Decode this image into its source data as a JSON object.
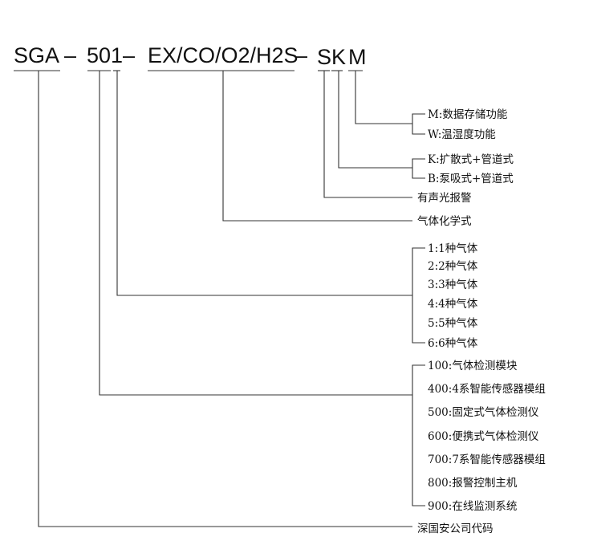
{
  "code": {
    "segments": [
      "SGA",
      "501",
      "EX/CO/O2/H2S",
      "SK",
      "M"
    ],
    "separator": "–"
  },
  "labels": {
    "function": [
      "M:数据存储功能",
      "W:温湿度功能"
    ],
    "sampling": [
      "K:扩散式+管道式",
      "B:泵吸式+管道式"
    ],
    "alarm": "有声光报警",
    "gas_formula": "气体化学式",
    "gas_count": [
      "1:1种气体",
      "2:2种气体",
      "3:3种气体",
      "4:4种气体",
      "5:5种气体",
      "6:6种气体"
    ],
    "product_series": [
      "100:气体检测模块",
      "400:4系智能传感器模组",
      "500:固定式气体检测仪",
      "600:便携式气体检测仪",
      "700:7系智能传感器模组",
      "800:报警控制主机",
      "900:在线监测系统"
    ],
    "company_code": "深国安公司代码"
  }
}
